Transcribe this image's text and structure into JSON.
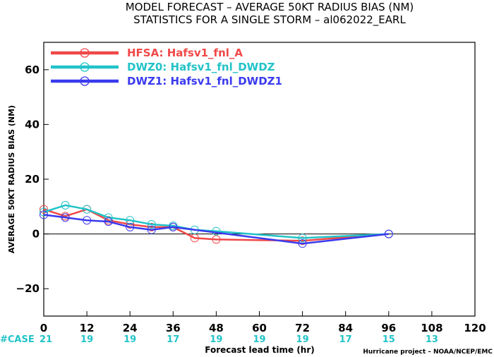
{
  "chart_data": {
    "type": "line",
    "title": "MODEL FORECAST – AVERAGE 50KT RADIUS BIAS (NM)",
    "subtitle": "STATISTICS FOR A SINGLE STORM – al062022_EARL",
    "xlabel": "Forecast lead time (hr)",
    "ylabel": "AVERAGE 50KT RADIUS BIAS (NM)",
    "xlim": [
      0,
      120
    ],
    "ylim": [
      -30,
      70
    ],
    "x_ticks": [
      0,
      12,
      24,
      36,
      48,
      60,
      72,
      84,
      96,
      108,
      120
    ],
    "y_ticks": [
      -20,
      0,
      20,
      40,
      60
    ],
    "zero_line": true,
    "grid": false,
    "legend_position": "top-left",
    "series": [
      {
        "name": "HFSA: Hafsv1_fnl_A",
        "color": "#f04848",
        "x": [
          0,
          6,
          12,
          18,
          24,
          30,
          36,
          42,
          48,
          72,
          96
        ],
        "y": [
          9,
          6.5,
          9,
          5,
          3.5,
          2.5,
          2.5,
          -1.5,
          -2,
          -2.5,
          0
        ]
      },
      {
        "name": "DWZ0: Hafsv1_fnl_DWDZ",
        "color": "#22c3c8",
        "x": [
          0,
          6,
          12,
          18,
          24,
          30,
          36,
          42,
          48,
          72,
          96
        ],
        "y": [
          8,
          10.5,
          9,
          6,
          5,
          3.5,
          3,
          1.5,
          1,
          -1.5,
          0
        ]
      },
      {
        "name": "DWZ1: Hafsv1_fnl_DWDZ1",
        "color": "#3a3aef",
        "x": [
          0,
          6,
          12,
          18,
          24,
          30,
          36,
          72,
          96
        ],
        "y": [
          7,
          6,
          5,
          4.5,
          2.5,
          1.5,
          2.5,
          -3.5,
          0
        ]
      }
    ],
    "case_label": "#CASE",
    "case_counts": [
      {
        "x": 0,
        "n": "21"
      },
      {
        "x": 12,
        "n": "19"
      },
      {
        "x": 24,
        "n": "19"
      },
      {
        "x": 36,
        "n": "17"
      },
      {
        "x": 48,
        "n": "19"
      },
      {
        "x": 60,
        "n": "19"
      },
      {
        "x": 72,
        "n": "19"
      },
      {
        "x": 84,
        "n": "17"
      },
      {
        "x": 96,
        "n": "15"
      },
      {
        "x": 108,
        "n": "13"
      }
    ],
    "credit": "Hurricane project – NOAA/NCEP/EMC"
  }
}
